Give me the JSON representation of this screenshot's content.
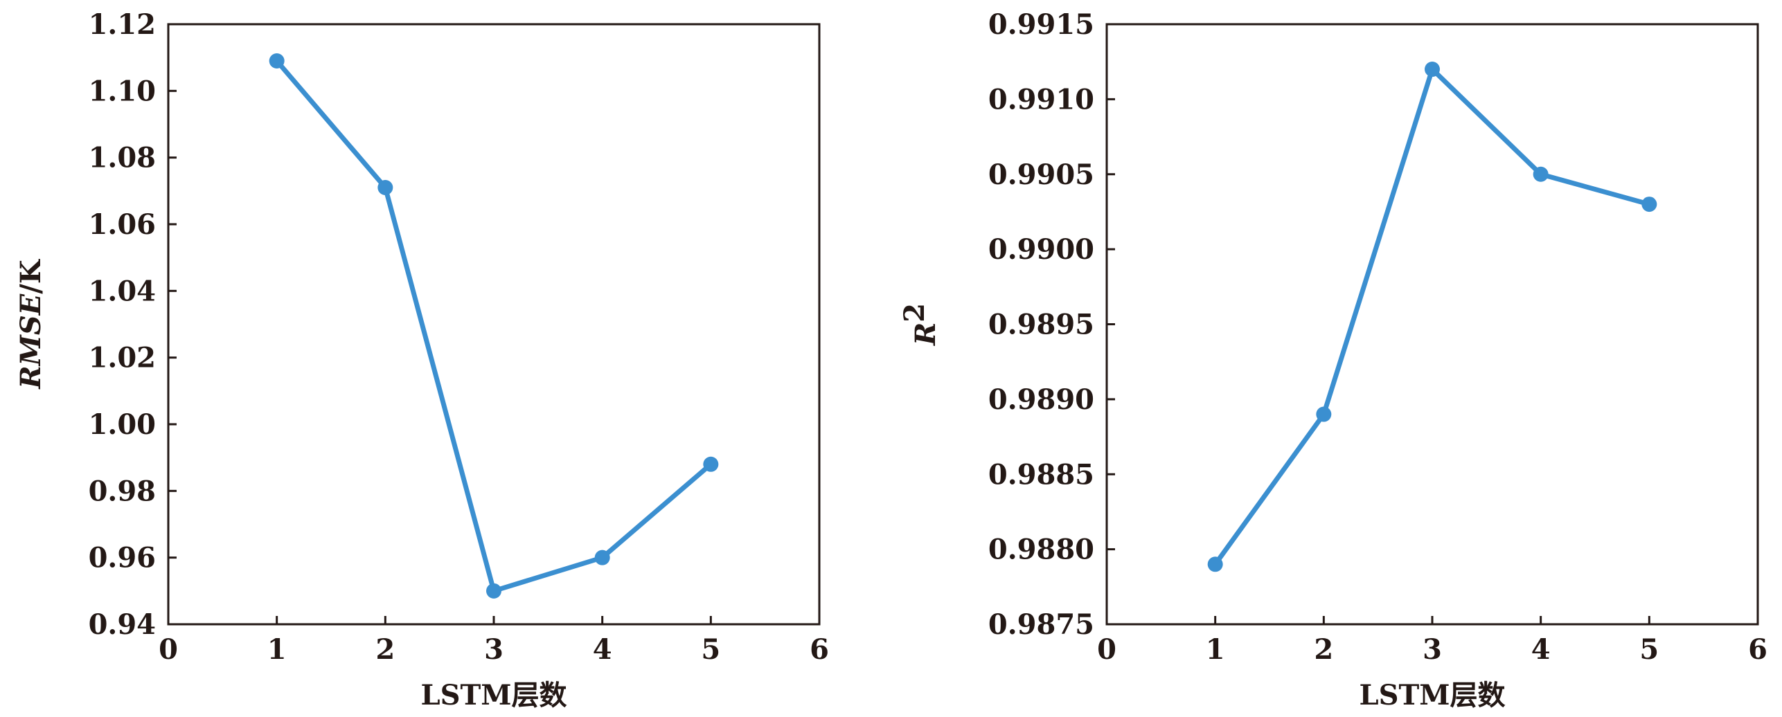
{
  "chart_data": [
    {
      "type": "line",
      "xlabel": "LSTM层数",
      "ylabel": "RMSE/K",
      "ylabel_parts": {
        "main": "RMSE",
        "unit": "/K"
      },
      "xlim": [
        0,
        6
      ],
      "ylim": [
        0.94,
        1.12
      ],
      "x_ticks": [
        0,
        1,
        2,
        3,
        4,
        5,
        6
      ],
      "y_ticks": [
        "0.94",
        "0.96",
        "0.98",
        "1.00",
        "1.02",
        "1.04",
        "1.06",
        "1.08",
        "1.10",
        "1.12"
      ],
      "x": [
        1,
        2,
        3,
        4,
        5
      ],
      "y": [
        1.109,
        1.071,
        0.95,
        0.96,
        0.988
      ],
      "color": "#3b8fd0",
      "grid": false
    },
    {
      "type": "line",
      "xlabel": "LSTM层数",
      "ylabel": "R²",
      "ylabel_parts": {
        "main": "R",
        "sup": "2"
      },
      "xlim": [
        0,
        6
      ],
      "ylim": [
        0.9875,
        0.9915
      ],
      "x_ticks": [
        0,
        1,
        2,
        3,
        4,
        5,
        6
      ],
      "y_ticks": [
        "0.9875",
        "0.9880",
        "0.9885",
        "0.9890",
        "0.9895",
        "0.9900",
        "0.9905",
        "0.9910",
        "0.9915"
      ],
      "x": [
        1,
        2,
        3,
        4,
        5
      ],
      "y": [
        0.9879,
        0.9889,
        0.9912,
        0.9905,
        0.9903
      ],
      "color": "#3b8fd0",
      "grid": false
    }
  ]
}
